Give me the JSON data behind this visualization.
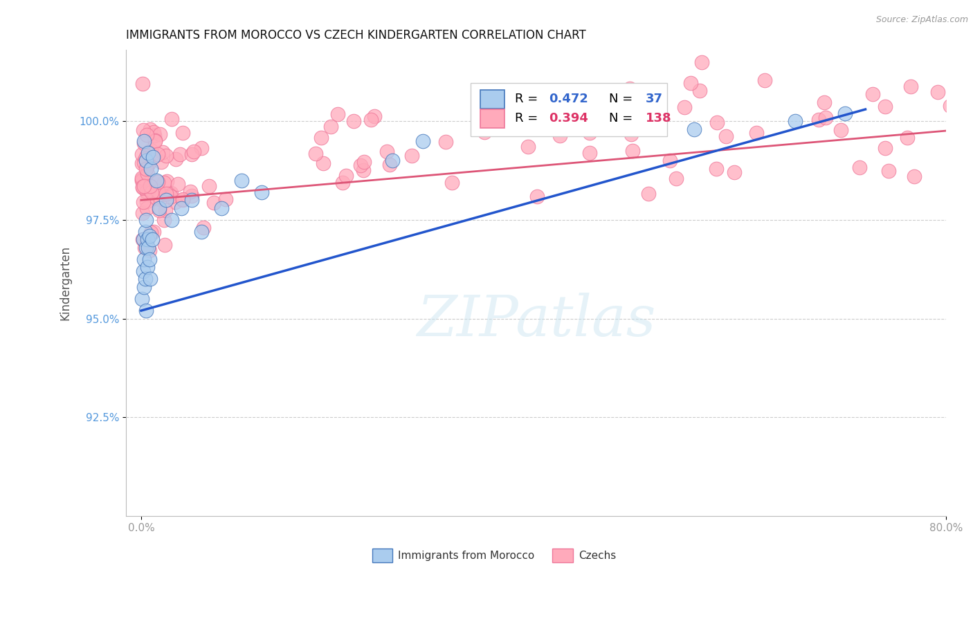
{
  "title": "IMMIGRANTS FROM MOROCCO VS CZECH KINDERGARTEN CORRELATION CHART",
  "source": "Source: ZipAtlas.com",
  "ylabel": "Kindergarten",
  "xlim": [
    -1.5,
    80.0
  ],
  "ylim": [
    90.0,
    101.8
  ],
  "yticks": [
    92.5,
    95.0,
    97.5,
    100.0
  ],
  "ytick_labels": [
    "92.5%",
    "95.0%",
    "97.5%",
    "100.0%"
  ],
  "blue_R": 0.472,
  "blue_N": 37,
  "pink_R": 0.394,
  "pink_N": 138,
  "blue_face_color": "#AACCEE",
  "blue_edge_color": "#4477BB",
  "pink_face_color": "#FFAABB",
  "pink_edge_color": "#EE7799",
  "blue_line_color": "#2255CC",
  "pink_line_color": "#DD5577",
  "legend_label_blue": "Immigrants from Morocco",
  "legend_label_pink": "Czechs",
  "watermark_text": "ZIPatlas",
  "background_color": "#FFFFFF",
  "grid_color": "#CCCCCC",
  "tick_color_y": "#5599DD",
  "tick_color_x": "#999999",
  "title_color": "#111111",
  "source_color": "#999999"
}
